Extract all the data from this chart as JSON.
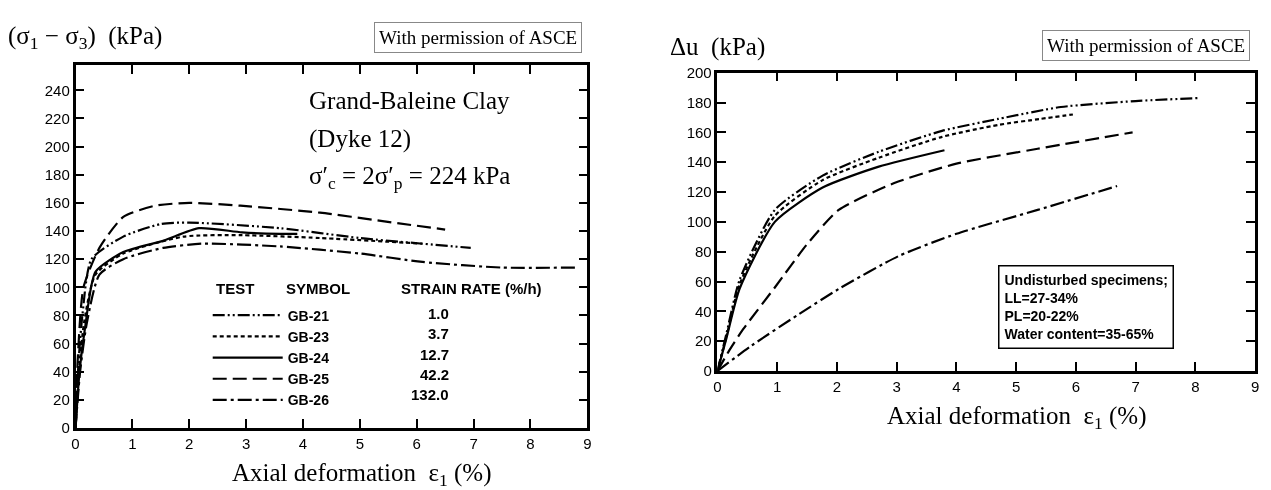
{
  "chart_data": [
    {
      "type": "line",
      "ylabel": "(σ$_{1}$ − σ$_{3}$)  (kPa)",
      "xlabel": "Axial deformation  ε$_{1}$ (%)",
      "annotations": [
        "With permission of ASCE",
        "Grand-Baleine Clay",
        "(Dyke 12)",
        "σ′$_{c}$ = 2σ′$_{p}$ = 224 kPa",
        "TEST",
        "SYMBOL",
        "STRAIN RATE (%/h)",
        "1.0",
        "3.7",
        "12.7",
        "42.2",
        "132.0"
      ],
      "xlim": [
        0,
        9
      ],
      "ylim": [
        0,
        258
      ],
      "xticks": [
        0,
        1,
        2,
        3,
        4,
        5,
        6,
        7,
        8,
        9
      ],
      "yticks": [
        0,
        20,
        40,
        60,
        80,
        100,
        120,
        140,
        160,
        180,
        200,
        220,
        240
      ],
      "legend": "bottom",
      "marker": "none",
      "series": [
        {
          "name": "GB-21",
          "color": "#000000",
          "line_style": "dashdotdot",
          "x": [
            0,
            0.05,
            0.12,
            0.28,
            0.84,
            1.5,
            2.0,
            3.6,
            5.0,
            6.95
          ],
          "values": [
            0,
            45,
            80,
            120,
            136,
            145,
            146,
            142,
            135,
            128
          ]
        },
        {
          "name": "GB-23",
          "color": "#000000",
          "line_style": "dashed",
          "x": [
            0,
            0.06,
            0.15,
            0.35,
            0.84,
            1.9,
            2.93,
            4.3,
            6.1
          ],
          "values": [
            0,
            40,
            75,
            109,
            124,
            136,
            137,
            135,
            131
          ]
        },
        {
          "name": "GB-24",
          "color": "#000000",
          "line_style": "solid",
          "x": [
            0,
            0.07,
            0.17,
            0.35,
            0.84,
            1.54,
            2.17,
            2.93,
            3.6,
            3.9
          ],
          "values": [
            0,
            40,
            72,
            111,
            125,
            133,
            142,
            139,
            138,
            138
          ]
        },
        {
          "name": "GB-25",
          "color": "#000000",
          "line_style": "longdash",
          "x": [
            0,
            0.04,
            0.14,
            0.42,
            0.84,
            1.4,
            2.0,
            2.9,
            4.3,
            5.4,
            6.5
          ],
          "values": [
            0,
            50,
            100,
            128,
            150,
            158,
            160,
            158,
            153,
            147,
            141
          ]
        },
        {
          "name": "GB-26",
          "color": "#000000",
          "line_style": "dashdot",
          "x": [
            0,
            0.08,
            0.2,
            0.42,
            0.84,
            1.54,
            2.24,
            3.6,
            5.0,
            6.1,
            7.5,
            8.8
          ],
          "values": [
            0,
            40,
            75,
            109,
            120,
            128,
            131,
            129,
            124,
            118,
            114,
            114
          ]
        }
      ]
    },
    {
      "type": "line",
      "ylabel": "Δu  (kPa)",
      "xlabel": "Axial deformation  ε$_{1}$ (%)",
      "annotations": [
        "With permission of ASCE",
        "Undisturbed specimens;\nLL=27-34%\nPL=20-22%\nWater content=35-65%"
      ],
      "xlim": [
        0,
        9
      ],
      "ylim": [
        0,
        200
      ],
      "xticks": [
        0,
        1,
        2,
        3,
        4,
        5,
        6,
        7,
        8,
        9
      ],
      "yticks": [
        0,
        20,
        40,
        60,
        80,
        100,
        120,
        140,
        160,
        180,
        200
      ],
      "marker": "none",
      "series": [
        {
          "color": "#000000",
          "line_style": "dashdotdot",
          "x": [
            0,
            0.15,
            0.37,
            0.96,
            1.76,
            2.7,
            3.76,
            4.7,
            5.75,
            7.0,
            8.05
          ],
          "values": [
            0,
            25,
            61,
            108,
            131,
            147,
            161,
            169,
            177,
            181,
            183
          ]
        },
        {
          "color": "#000000",
          "line_style": "dashed",
          "x": [
            0,
            0.15,
            0.37,
            0.96,
            1.76,
            2.7,
            3.76,
            4.7,
            5.4,
            5.95
          ],
          "values": [
            0,
            23,
            58,
            104,
            128,
            143,
            157,
            165,
            169,
            172
          ]
        },
        {
          "color": "#000000",
          "line_style": "solid",
          "x": [
            0,
            0.15,
            0.37,
            0.96,
            1.76,
            2.7,
            3.8
          ],
          "values": [
            0,
            22,
            55,
            100,
            123,
            137,
            148
          ]
        },
        {
          "color": "#000000",
          "line_style": "longdash",
          "x": [
            0,
            0.2,
            0.43,
            0.96,
            1.5,
            2.03,
            2.96,
            4.0,
            5.36,
            6.95
          ],
          "values": [
            0,
            14,
            28,
            56,
            85,
            108,
            126,
            139,
            149,
            160
          ]
        },
        {
          "color": "#000000",
          "line_style": "dashdot",
          "x": [
            0,
            0.57,
            1.36,
            2.03,
            3.03,
            4.0,
            5.36,
            6.69
          ],
          "values": [
            0,
            17,
            38,
            55,
            77,
            92,
            108,
            124
          ]
        }
      ]
    }
  ]
}
